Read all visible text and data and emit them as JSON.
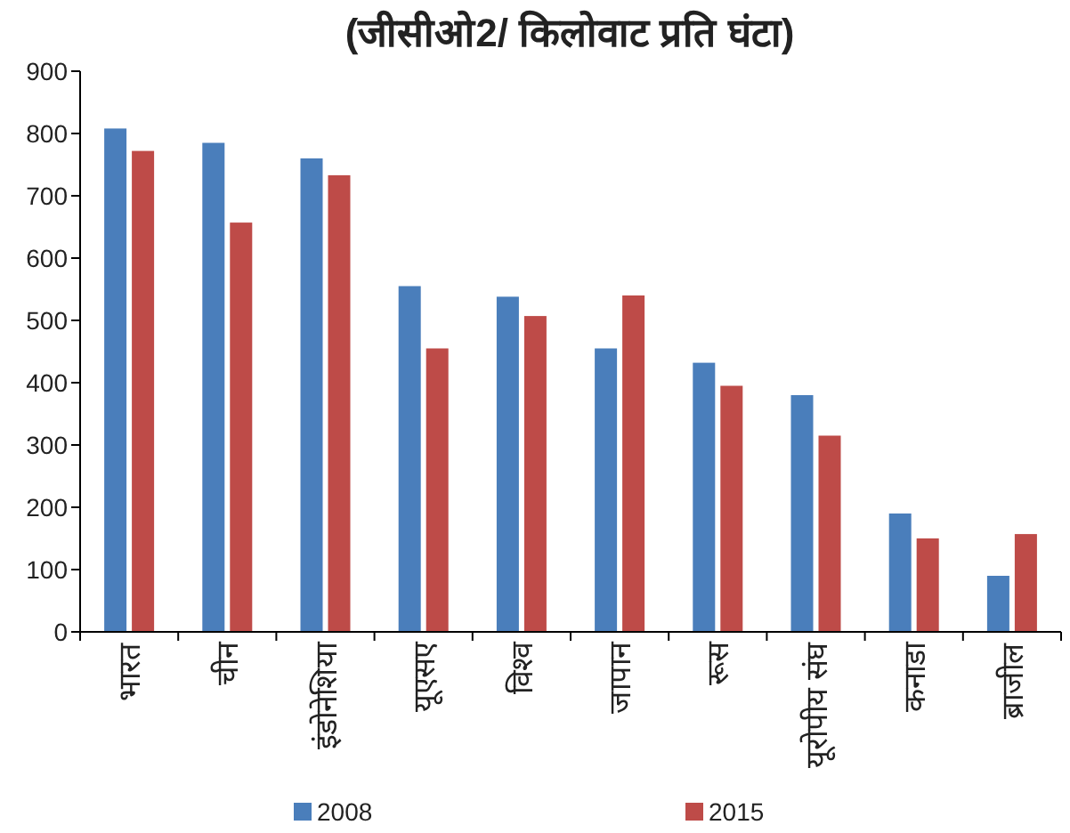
{
  "chart_data": {
    "type": "bar",
    "title": "(जीसीओ2/ किलोवाट प्रति घंटा)",
    "categories": [
      "भारत",
      "चीन",
      "इंडोनेशिया",
      "यूएसए",
      "विश्व",
      "जापान",
      "रूस",
      "यूरोपीय संघ",
      "कनाडा",
      "ब्राजील"
    ],
    "series": [
      {
        "name": "2008",
        "color": "#4a7ebb",
        "values": [
          808,
          785,
          760,
          555,
          538,
          455,
          432,
          380,
          190,
          90
        ]
      },
      {
        "name": "2015",
        "color": "#be4b48",
        "values": [
          772,
          657,
          733,
          455,
          507,
          540,
          395,
          315,
          150,
          157
        ]
      }
    ],
    "ylim": [
      0,
      900
    ],
    "yticks": [
      0,
      100,
      200,
      300,
      400,
      500,
      600,
      700,
      800,
      900
    ],
    "grid": false,
    "legend": "bottom"
  }
}
